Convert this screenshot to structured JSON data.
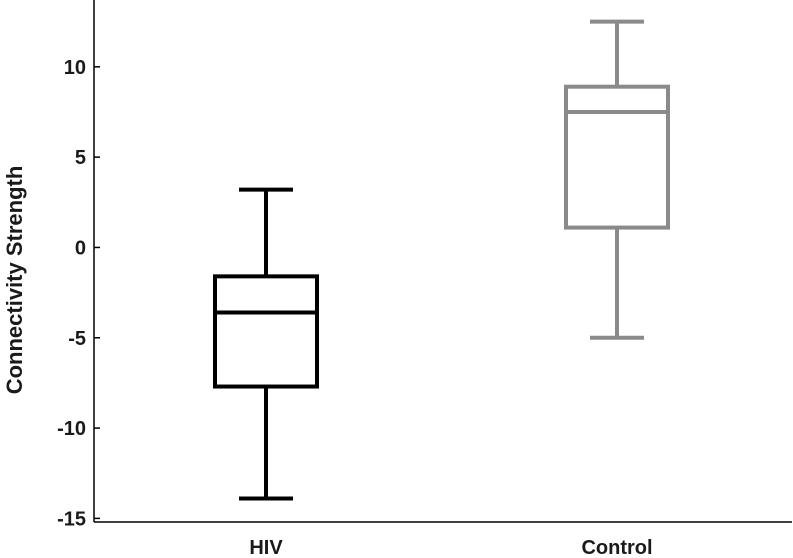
{
  "chart_data": {
    "type": "box",
    "title": "",
    "xlabel": "",
    "ylabel": "Connectivity Strength",
    "ylim": [
      -15.2,
      13.7
    ],
    "yticks": [
      10,
      5,
      0,
      -5,
      -10,
      -15
    ],
    "grid": false,
    "legend": "none",
    "categories": [
      "HIV",
      "Control"
    ],
    "boxes": [
      {
        "category": "HIV",
        "whisker_low": -13.9,
        "q1": -7.7,
        "median": -3.6,
        "q3": -1.6,
        "whisker_high": 3.2,
        "color": "#000000"
      },
      {
        "category": "Control",
        "whisker_low": -5.0,
        "q1": 1.1,
        "median": 7.5,
        "q3": 8.9,
        "whisker_high": 12.5,
        "color": "#8a8a8a"
      }
    ]
  }
}
